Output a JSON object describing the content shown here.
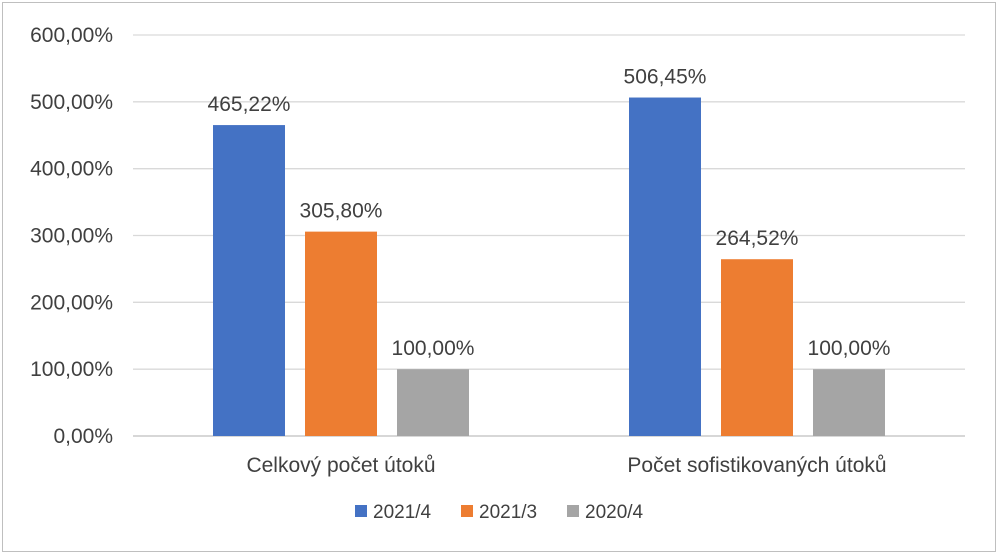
{
  "chart_data": {
    "type": "bar",
    "categories": [
      "Celkový počet útoků",
      "Počet sofistikovaných útoků"
    ],
    "series": [
      {
        "name": "2021/4",
        "values": [
          465.22,
          506.45
        ],
        "labels": [
          "465,22%",
          "506,45%"
        ],
        "color": "#4472c4"
      },
      {
        "name": "2021/3",
        "values": [
          305.8,
          264.52
        ],
        "labels": [
          "305,80%",
          "264,52%"
        ],
        "color": "#ed7d31"
      },
      {
        "name": "2020/4",
        "values": [
          100.0,
          100.0
        ],
        "labels": [
          "100,00%",
          "100,00%"
        ],
        "color": "#a5a5a5"
      }
    ],
    "yticks": [
      {
        "value": 0,
        "label": "0,00%"
      },
      {
        "value": 100,
        "label": "100,00%"
      },
      {
        "value": 200,
        "label": "200,00%"
      },
      {
        "value": 300,
        "label": "300,00%"
      },
      {
        "value": 400,
        "label": "400,00%"
      },
      {
        "value": 500,
        "label": "500,00%"
      },
      {
        "value": 600,
        "label": "600,00%"
      }
    ],
    "ylim": [
      0,
      600
    ],
    "grid": true,
    "gridColor": "#d9d9d9",
    "legend_position": "bottom",
    "title": "",
    "xlabel": "",
    "ylabel": ""
  }
}
